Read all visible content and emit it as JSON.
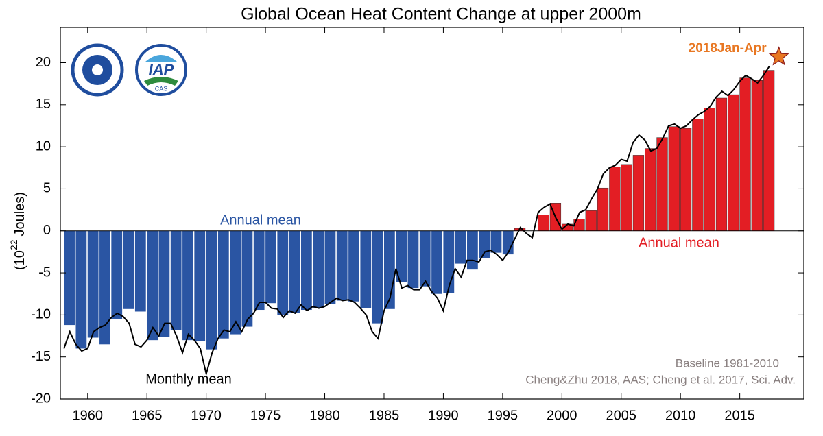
{
  "chart_data": {
    "type": "bar-line",
    "title": "Global Ocean Heat Content Change at upper 2000m",
    "y_label": {
      "base": "(10",
      "exp": "22",
      "unit": "Joules)"
    },
    "categories": [
      1958,
      1959,
      1960,
      1961,
      1962,
      1963,
      1964,
      1965,
      1966,
      1967,
      1968,
      1969,
      1970,
      1971,
      1972,
      1973,
      1974,
      1975,
      1976,
      1977,
      1978,
      1979,
      1980,
      1981,
      1982,
      1983,
      1984,
      1985,
      1986,
      1987,
      1988,
      1989,
      1990,
      1991,
      1992,
      1993,
      1994,
      1995,
      1996,
      1997,
      1998,
      1999,
      2000,
      2001,
      2002,
      2003,
      2004,
      2005,
      2006,
      2007,
      2008,
      2009,
      2010,
      2011,
      2012,
      2013,
      2014,
      2015,
      2016,
      2017
    ],
    "values": [
      -11.2,
      -14,
      -12.7,
      -13.5,
      -10.5,
      -9.3,
      -9.6,
      -13,
      -12.6,
      -11.8,
      -13,
      -13.1,
      -14.1,
      -12.8,
      -12.3,
      -11.4,
      -9.4,
      -8.6,
      -10,
      -9.8,
      -9.4,
      -9.2,
      -8.7,
      -8.3,
      -8.4,
      -9.2,
      -11,
      -9.3,
      -6.1,
      -6.8,
      -6.6,
      -7.5,
      -7.4,
      -3.9,
      -4.6,
      -3.2,
      -2.6,
      -2.8,
      0.3,
      0,
      1.9,
      3.3,
      0.8,
      1.4,
      2.4,
      5.1,
      7.6,
      7.9,
      9,
      9.8,
      11.1,
      12.4,
      12.2,
      13.3,
      14.6,
      15.8,
      16.2,
      18.2,
      17.9,
      19.1
    ],
    "negative_color": "#2a55a3",
    "positive_color": "#e31e24",
    "line": {
      "color": "#000000",
      "x": [
        1958,
        1958.5,
        1959,
        1959.5,
        1960,
        1960.5,
        1961,
        1961.5,
        1962,
        1962.5,
        1963,
        1963.5,
        1964,
        1964.5,
        1965,
        1965.5,
        1966,
        1966.5,
        1967,
        1967.5,
        1968,
        1968.5,
        1969,
        1969.5,
        1970,
        1970.5,
        1971,
        1971.5,
        1972,
        1972.5,
        1973,
        1973.5,
        1974,
        1974.5,
        1975,
        1975.5,
        1976,
        1976.5,
        1977,
        1977.5,
        1978,
        1978.5,
        1979,
        1979.5,
        1980,
        1980.5,
        1981,
        1981.5,
        1982,
        1982.5,
        1983,
        1983.5,
        1984,
        1984.5,
        1985,
        1985.5,
        1986,
        1986.5,
        1987,
        1987.5,
        1988,
        1988.5,
        1989,
        1989.5,
        1990,
        1990.5,
        1991,
        1991.5,
        1992,
        1992.5,
        1993,
        1993.5,
        1994,
        1994.5,
        1995,
        1995.5,
        1996,
        1996.5,
        1997,
        1997.5,
        1998,
        1998.5,
        1999,
        1999.5,
        2000,
        2000.5,
        2001,
        2001.5,
        2002,
        2002.5,
        2003,
        2003.5,
        2004,
        2004.5,
        2005,
        2005.5,
        2006,
        2006.5,
        2007,
        2007.5,
        2008,
        2008.5,
        2009,
        2009.5,
        2010,
        2010.5,
        2011,
        2011.5,
        2012,
        2012.5,
        2013,
        2013.5,
        2014,
        2014.5,
        2015,
        2015.5,
        2016,
        2016.5,
        2017,
        2017.5
      ],
      "values": [
        -14,
        -12,
        -13.5,
        -14.3,
        -14,
        -12,
        -11.5,
        -11.2,
        -10.3,
        -9.8,
        -10.2,
        -11,
        -13.5,
        -13.8,
        -13,
        -11.5,
        -12.5,
        -11,
        -11,
        -12.5,
        -14.5,
        -12.3,
        -13,
        -14,
        -17,
        -14.5,
        -12.8,
        -11.8,
        -12,
        -10.8,
        -12,
        -10.5,
        -9.8,
        -8.5,
        -8.5,
        -9.2,
        -9.3,
        -10.3,
        -9.5,
        -9.8,
        -8.8,
        -9.5,
        -9,
        -9.2,
        -9,
        -8.5,
        -8,
        -8.3,
        -8.2,
        -8.5,
        -9.2,
        -10,
        -12,
        -12.8,
        -9.5,
        -8,
        -4.5,
        -6.8,
        -6.5,
        -7,
        -7,
        -6,
        -7.2,
        -8,
        -9.5,
        -6.5,
        -4.5,
        -5.5,
        -3.5,
        -3.5,
        -3.7,
        -2.5,
        -2.3,
        -2.8,
        -3.5,
        -2.5,
        -1,
        0.4,
        -0.3,
        -0.8,
        2.2,
        2.8,
        3.2,
        1.5,
        0.2,
        0.8,
        0.6,
        2.2,
        2.5,
        3.8,
        5,
        6.8,
        7.5,
        7.8,
        8.5,
        8.3,
        10.5,
        11.4,
        10.8,
        9.5,
        9.8,
        11,
        12.5,
        12.7,
        12.2,
        12.5,
        13.2,
        13.8,
        14.2,
        14.8,
        15.9,
        16.6,
        16.1,
        16.8,
        17.8,
        18.5,
        18.1,
        17.6,
        18.5,
        19.6
      ]
    },
    "star": {
      "x": 2018.3,
      "y": 20.7,
      "label": "2018Jan-Apr",
      "color": "#e87722"
    },
    "annotations": [
      "Annual mean",
      "Annual mean",
      "Monthly mean",
      "Baseline 1981-2010",
      "Cheng&Zhu 2018, AAS; Cheng et al. 2017, Sci. Adv."
    ],
    "logos": [
      "IAP",
      "CAS"
    ],
    "xlim": [
      1957.7,
      2020.4
    ],
    "ylim": [
      -20,
      24.2
    ],
    "xticks": [
      1960,
      1965,
      1970,
      1975,
      1980,
      1985,
      1990,
      1995,
      2000,
      2005,
      2010,
      2015
    ],
    "yticks": [
      -20,
      -15,
      -10,
      -5,
      0,
      5,
      10,
      15,
      20
    ]
  }
}
